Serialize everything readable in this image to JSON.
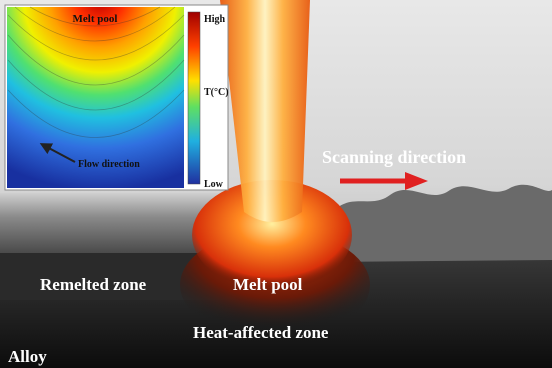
{
  "inset": {
    "title": "Melt pool",
    "colorbar": {
      "high": "High",
      "label": "T(°C)",
      "low": "Low"
    },
    "annotation": "Flow direction"
  },
  "labels": {
    "scanning_direction": "Scanning direction",
    "remelted_zone": "Remelted zone",
    "melt_pool": "Melt pool",
    "heat_affected_zone": "Heat-affected zone",
    "alloy": "Alloy"
  }
}
